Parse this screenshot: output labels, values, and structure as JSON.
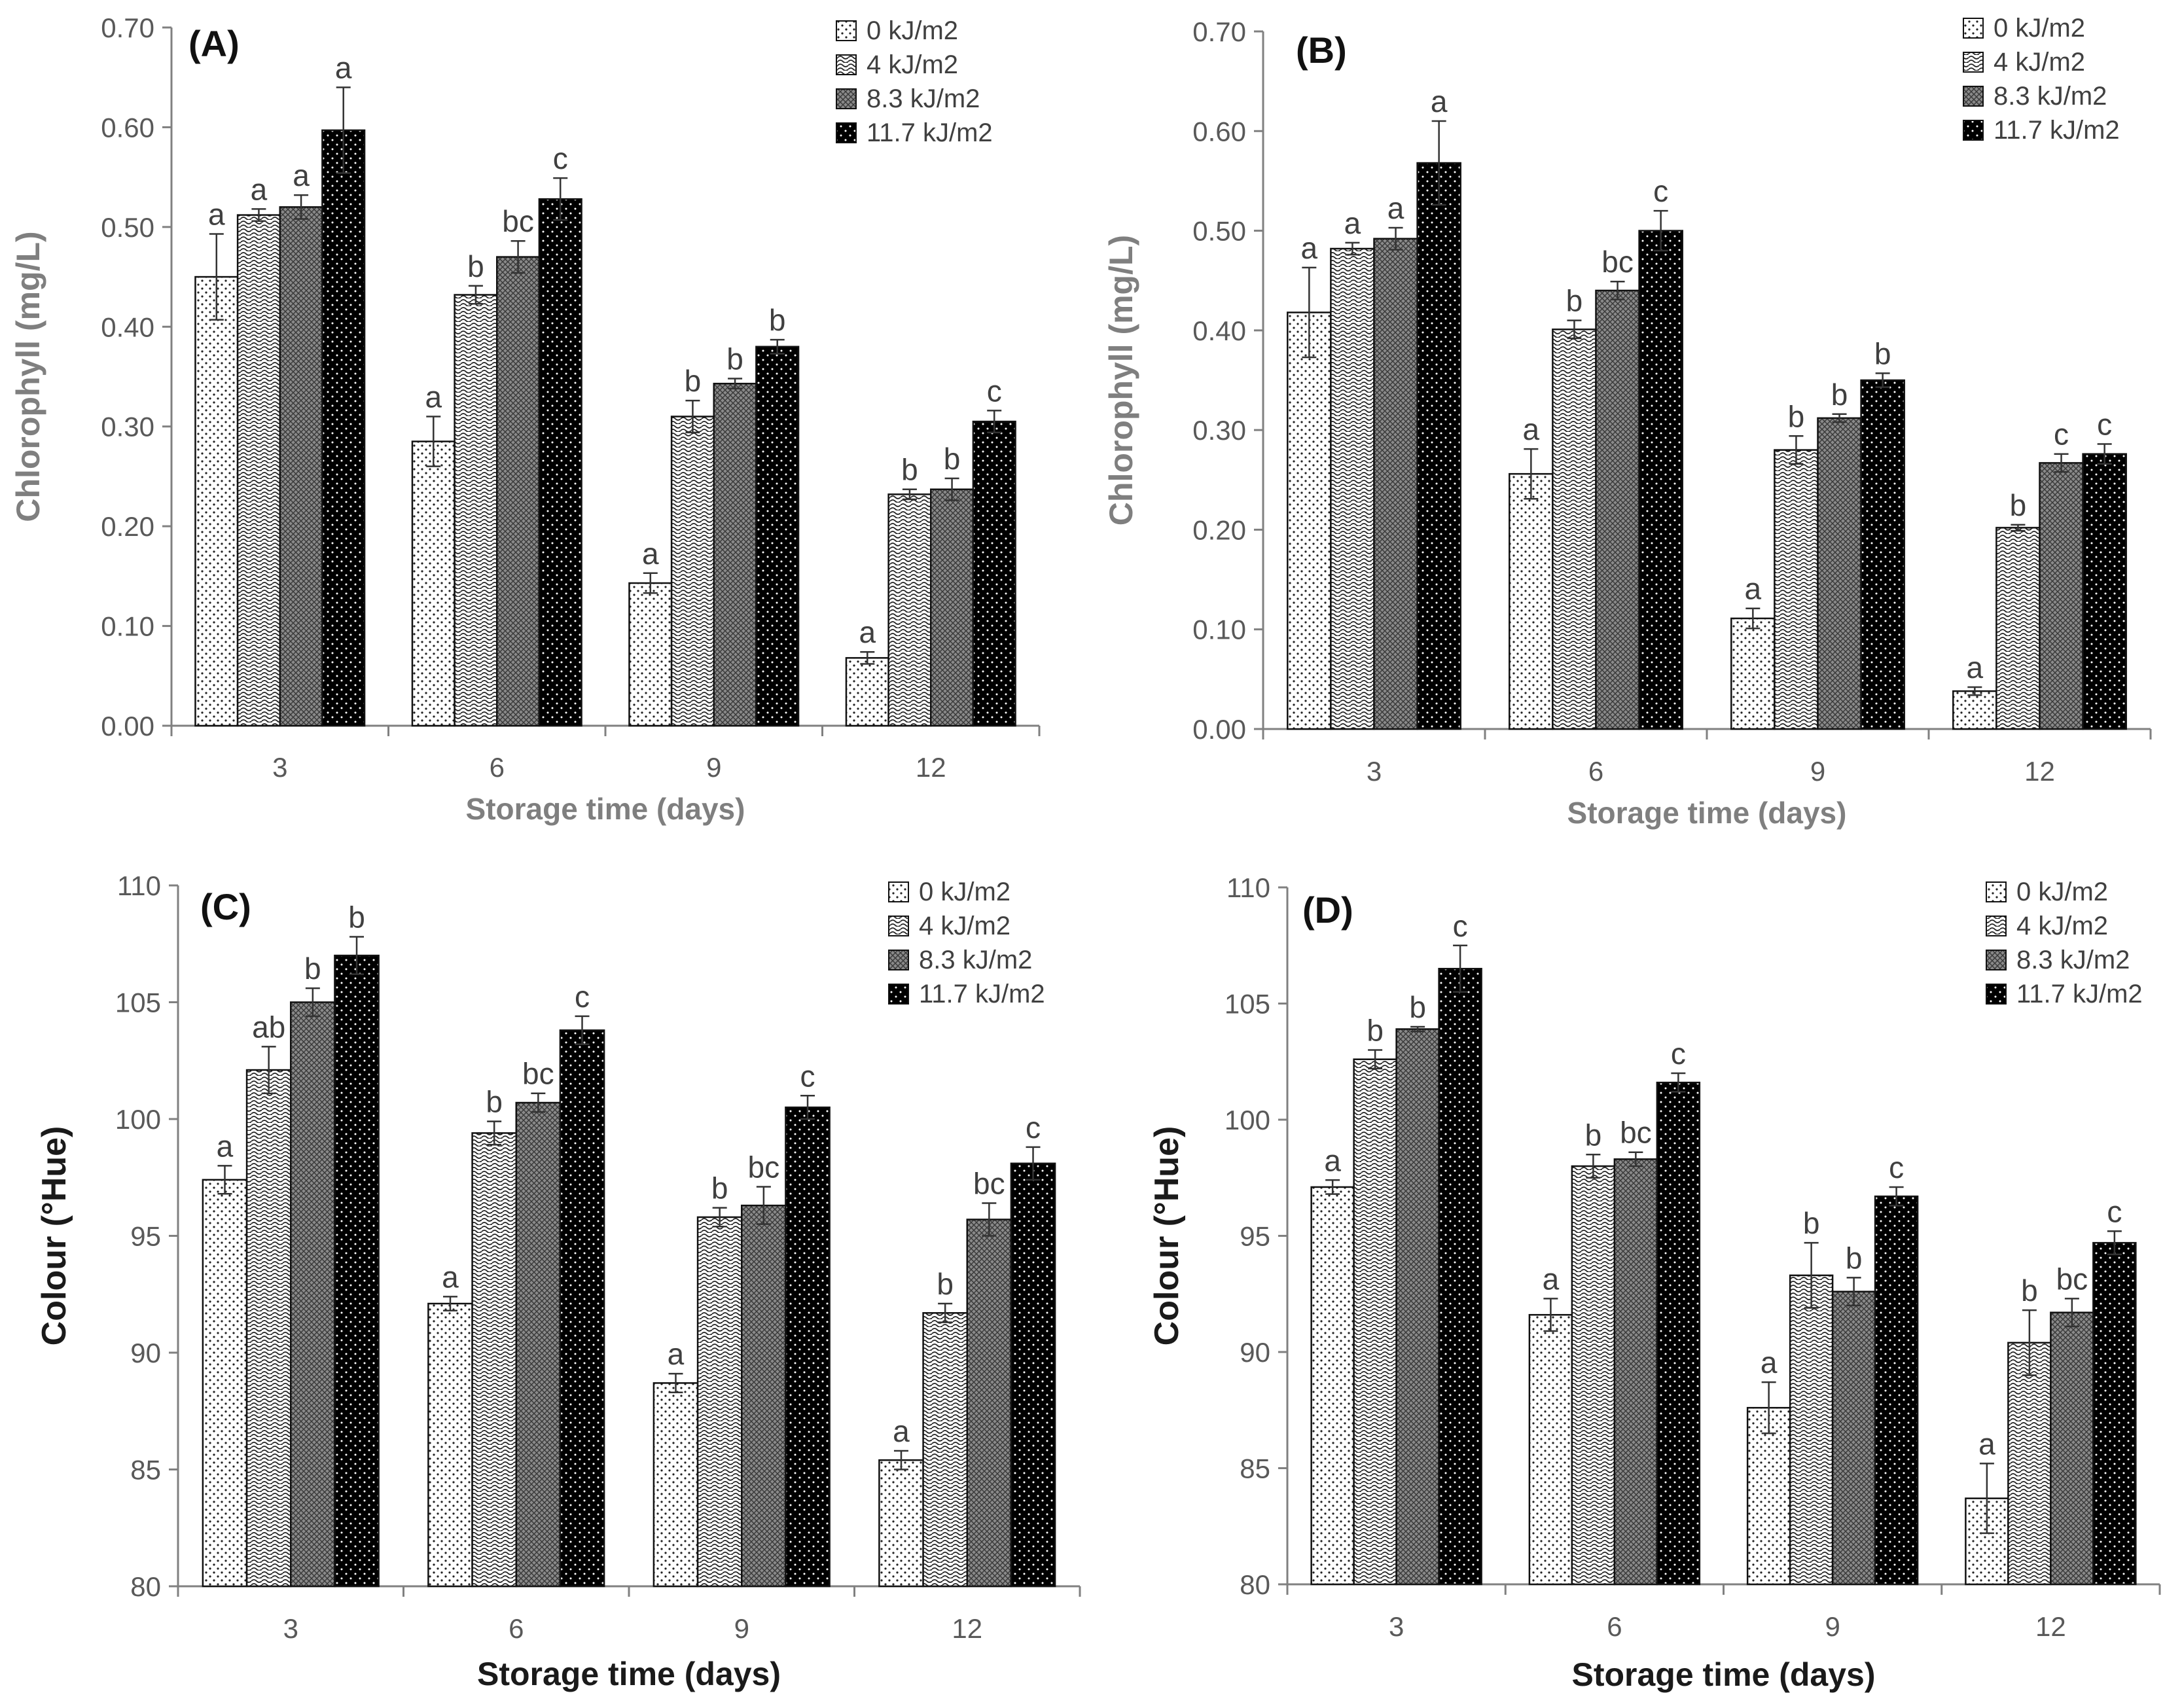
{
  "figure": {
    "series_names": [
      "0 kJ/m2",
      "4 kJ/m2",
      "8.3 kJ/m2",
      "11.7 kJ/m2"
    ],
    "colors": {
      "axis": "#808080",
      "bar_outline": "#111111",
      "text": "#595959",
      "title_dark": "#1a1a1a"
    }
  },
  "chart_data": [
    {
      "panel": "(A)",
      "type": "bar",
      "ylabel": "Chlorophyll (mg/L)",
      "xlabel": "Storage time (days)",
      "categories": [
        "3",
        "6",
        "9",
        "12"
      ],
      "ylim": [
        0,
        0.7
      ],
      "yticks": [
        0.0,
        0.1,
        0.2,
        0.3,
        0.4,
        0.5,
        0.6,
        0.7
      ],
      "ytick_labels": [
        "0.00",
        "0.10",
        "0.20",
        "0.30",
        "0.40",
        "0.50",
        "0.60",
        "0.70"
      ],
      "legend_position": "top-right",
      "series": [
        {
          "name": "0 kJ/m2",
          "values": [
            0.45,
            0.285,
            0.143,
            0.068
          ],
          "errors": [
            0.043,
            0.025,
            0.01,
            0.006
          ],
          "letters": [
            "a",
            "a",
            "a",
            "a"
          ]
        },
        {
          "name": "4 kJ/m2",
          "values": [
            0.512,
            0.432,
            0.31,
            0.232
          ],
          "errors": [
            0.006,
            0.009,
            0.016,
            0.005
          ],
          "letters": [
            "a",
            "b",
            "b",
            "b"
          ]
        },
        {
          "name": "8.3 kJ/m2",
          "values": [
            0.52,
            0.47,
            0.343,
            0.237
          ],
          "errors": [
            0.012,
            0.016,
            0.005,
            0.011
          ],
          "letters": [
            "a",
            "bc",
            "b",
            "b"
          ]
        },
        {
          "name": "11.7 kJ/m2",
          "values": [
            0.597,
            0.528,
            0.38,
            0.305
          ],
          "errors": [
            0.043,
            0.021,
            0.007,
            0.011
          ],
          "letters": [
            "a",
            "c",
            "b",
            "c"
          ]
        }
      ]
    },
    {
      "panel": "(B)",
      "type": "bar",
      "ylabel": "Chlorophyll (mg/L)",
      "xlabel": "Storage time (days)",
      "categories": [
        "3",
        "6",
        "9",
        "12"
      ],
      "ylim": [
        0,
        0.7
      ],
      "yticks": [
        0.0,
        0.1,
        0.2,
        0.3,
        0.4,
        0.5,
        0.6,
        0.7
      ],
      "ytick_labels": [
        "0.00",
        "0.10",
        "0.20",
        "0.30",
        "0.40",
        "0.50",
        "0.60",
        "0.70"
      ],
      "legend_position": "top-right",
      "series": [
        {
          "name": "0 kJ/m2",
          "values": [
            0.418,
            0.256,
            0.111,
            0.038
          ],
          "errors": [
            0.045,
            0.025,
            0.01,
            0.004
          ],
          "letters": [
            "a",
            "a",
            "a",
            "a"
          ]
        },
        {
          "name": "4 kJ/m2",
          "values": [
            0.482,
            0.401,
            0.28,
            0.202
          ],
          "errors": [
            0.006,
            0.009,
            0.014,
            0.003
          ],
          "letters": [
            "a",
            "b",
            "b",
            "b"
          ]
        },
        {
          "name": "8.3 kJ/m2",
          "values": [
            0.492,
            0.44,
            0.312,
            0.267
          ],
          "errors": [
            0.011,
            0.009,
            0.004,
            0.009
          ],
          "letters": [
            "a",
            "bc",
            "b",
            "c"
          ]
        },
        {
          "name": "11.7 kJ/m2",
          "values": [
            0.568,
            0.5,
            0.35,
            0.276
          ],
          "errors": [
            0.042,
            0.02,
            0.007,
            0.01
          ],
          "letters": [
            "a",
            "c",
            "b",
            "c"
          ]
        }
      ]
    },
    {
      "panel": "(C)",
      "type": "bar",
      "ylabel": "Colour (°Hue)",
      "xlabel": "Storage time (days)",
      "categories": [
        "3",
        "6",
        "9",
        "12"
      ],
      "ylim": [
        80,
        110
      ],
      "yticks": [
        80,
        85,
        90,
        95,
        100,
        105,
        110
      ],
      "ytick_labels": [
        "80",
        "85",
        "90",
        "95",
        "100",
        "105",
        "110"
      ],
      "legend_position": "top-right",
      "series": [
        {
          "name": "0 kJ/m2",
          "values": [
            97.4,
            92.1,
            88.7,
            85.4
          ],
          "errors": [
            0.6,
            0.3,
            0.4,
            0.4
          ],
          "letters": [
            "a",
            "a",
            "a",
            "a"
          ]
        },
        {
          "name": "4 kJ/m2",
          "values": [
            102.1,
            99.4,
            95.8,
            91.7
          ],
          "errors": [
            1.0,
            0.5,
            0.4,
            0.4
          ],
          "letters": [
            "ab",
            "b",
            "b",
            "b"
          ]
        },
        {
          "name": "8.3 kJ/m2",
          "values": [
            105.0,
            100.7,
            96.3,
            95.7
          ],
          "errors": [
            0.6,
            0.4,
            0.8,
            0.7
          ],
          "letters": [
            "b",
            "bc",
            "bc",
            "bc"
          ]
        },
        {
          "name": "11.7 kJ/m2",
          "values": [
            107.0,
            103.8,
            100.5,
            98.1
          ],
          "errors": [
            0.8,
            0.6,
            0.5,
            0.7
          ],
          "letters": [
            "b",
            "c",
            "c",
            "c"
          ]
        }
      ]
    },
    {
      "panel": "(D)",
      "type": "bar",
      "ylabel": "Colour (°Hue)",
      "xlabel": "Storage time (days)",
      "categories": [
        "3",
        "6",
        "9",
        "12"
      ],
      "ylim": [
        80,
        110
      ],
      "yticks": [
        80,
        85,
        90,
        95,
        100,
        105,
        110
      ],
      "ytick_labels": [
        "80",
        "85",
        "90",
        "95",
        "100",
        "105",
        "110"
      ],
      "legend_position": "top-right",
      "series": [
        {
          "name": "0 kJ/m2",
          "values": [
            97.1,
            91.6,
            87.6,
            83.7
          ],
          "errors": [
            0.3,
            0.7,
            1.1,
            1.5
          ],
          "letters": [
            "a",
            "a",
            "a",
            "a"
          ]
        },
        {
          "name": "4 kJ/m2",
          "values": [
            102.6,
            98.0,
            93.3,
            90.4
          ],
          "errors": [
            0.4,
            0.5,
            1.4,
            1.4
          ],
          "letters": [
            "b",
            "b",
            "b",
            "b"
          ]
        },
        {
          "name": "8.3 kJ/m2",
          "values": [
            103.9,
            98.3,
            92.6,
            91.7
          ],
          "errors": [
            0.1,
            0.3,
            0.6,
            0.6
          ],
          "letters": [
            "b",
            "bc",
            "b",
            "bc"
          ]
        },
        {
          "name": "11.7 kJ/m2",
          "values": [
            106.5,
            101.6,
            96.7,
            94.7
          ],
          "errors": [
            1.0,
            0.4,
            0.4,
            0.5
          ],
          "letters": [
            "c",
            "c",
            "c",
            "c"
          ]
        }
      ]
    }
  ]
}
